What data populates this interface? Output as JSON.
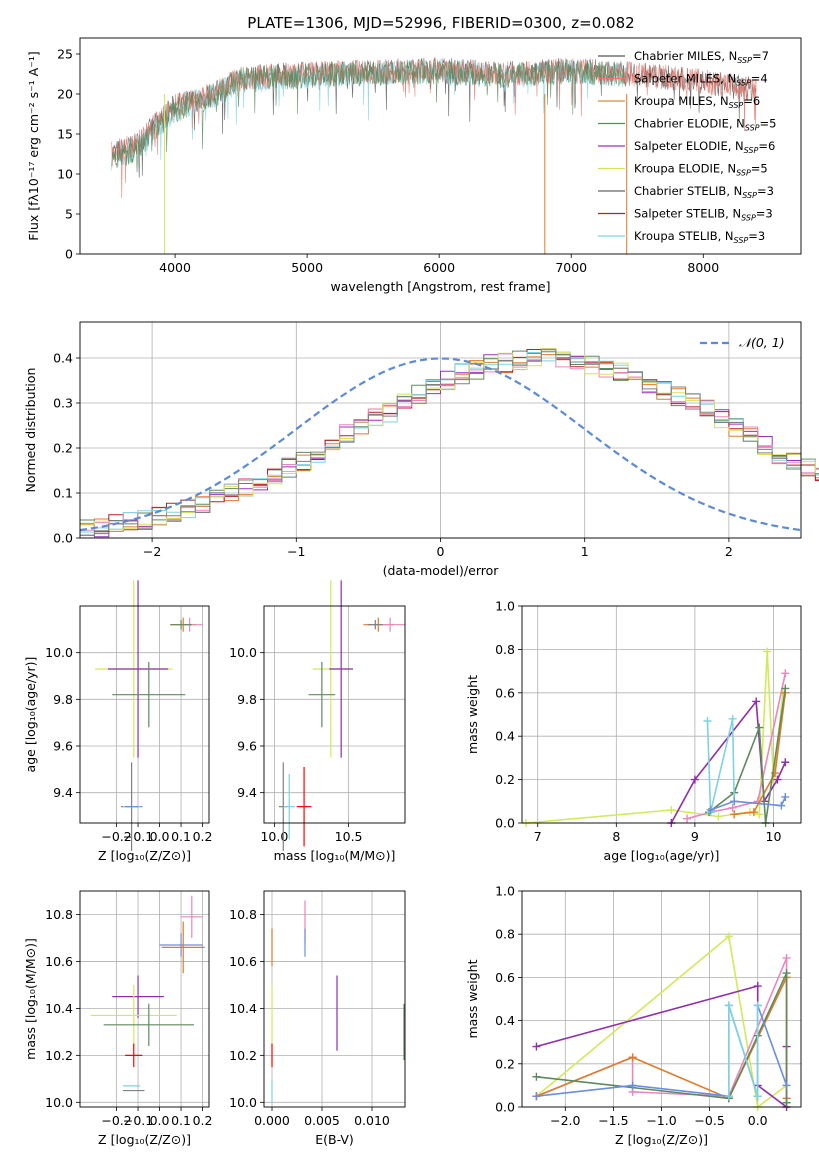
{
  "figure": {
    "title": "PLATE=1306, MJD=52996, FIBERID=0300, z=0.082"
  },
  "legend_models": [
    {
      "label": "Chabrier MILES, N",
      "sub": "SSP",
      "tail": "=7",
      "color": "#555555"
    },
    {
      "label": "Salpeter MILES, N",
      "sub": "SSP",
      "tail": "=4",
      "color": "#e8766a"
    },
    {
      "label": "Kroupa MILES, N",
      "sub": "SSP",
      "tail": "=6",
      "color": "#d9893e"
    },
    {
      "label": "Chabrier ELODIE, N",
      "sub": "SSP",
      "tail": "=5",
      "color": "#5a8a5a"
    },
    {
      "label": "Salpeter ELODIE, N",
      "sub": "SSP",
      "tail": "=6",
      "color": "#9b30c0"
    },
    {
      "label": "Kroupa ELODIE, N",
      "sub": "SSP",
      "tail": "=5",
      "color": "#d6e25a"
    },
    {
      "label": "Chabrier STELIB, N",
      "sub": "SSP",
      "tail": "=3",
      "color": "#666666"
    },
    {
      "label": "Salpeter STELIB, N",
      "sub": "SSP",
      "tail": "=3",
      "color": "#b22222"
    },
    {
      "label": "Kroupa STELIB, N",
      "sub": "SSP",
      "tail": "=3",
      "color": "#7fd3e0"
    }
  ],
  "colors": {
    "grid": "#b0b0b0",
    "normal_curve": "#5b8bd6",
    "orange": "#e07b2a",
    "pink": "#e887bd",
    "blue": "#6a8fe0",
    "purple": "#8e2eaa",
    "green": "#5f8a5f",
    "yellow": "#d2ea5a",
    "cyan": "#7fd3e0",
    "gray": "#808080"
  },
  "chart_data": [
    {
      "id": "spectrum",
      "type": "line",
      "xlabel": "wavelength [Angstrom, rest frame]",
      "ylabel": "Flux [fλ10⁻¹⁷ erg cm⁻² s⁻¹ A⁻¹]",
      "xlim": [
        3280,
        8740
      ],
      "ylim": [
        0,
        27
      ],
      "xticks": [
        4000,
        5000,
        6000,
        7000,
        8000
      ],
      "yticks": [
        0,
        5,
        10,
        15,
        20,
        25
      ],
      "xtick_labels": [
        "4000",
        "5000",
        "6000",
        "7000",
        "8000"
      ],
      "ytick_labels": [
        "0",
        "5",
        "10",
        "15",
        "20",
        "25"
      ],
      "grid": false,
      "legend_position": "upper right",
      "series": [
        {
          "name": "Chabrier MILES",
          "envelope": [
            [
              3520,
              12.5
            ],
            [
              3700,
              13.5
            ],
            [
              3900,
              17.0
            ],
            [
              4000,
              18.5
            ],
            [
              4300,
              20.0
            ],
            [
              4500,
              22.0
            ],
            [
              5000,
              22.5
            ],
            [
              5500,
              22.8
            ],
            [
              6000,
              23.0
            ],
            [
              6500,
              22.5
            ],
            [
              7000,
              23.0
            ],
            [
              7400,
              22.5
            ],
            [
              7450,
              22.6
            ],
            [
              8000,
              21.5
            ],
            [
              8400,
              20.5
            ]
          ]
        },
        {
          "name": "Kroupa STELIB",
          "envelope": [
            [
              3520,
              12.0
            ],
            [
              3700,
              13.0
            ],
            [
              3900,
              16.5
            ],
            [
              4000,
              18.0
            ],
            [
              4300,
              19.8
            ],
            [
              4500,
              21.8
            ],
            [
              5000,
              22.3
            ],
            [
              5500,
              22.6
            ],
            [
              6000,
              22.8
            ],
            [
              6500,
              22.3
            ],
            [
              7000,
              22.8
            ],
            [
              7400,
              22.3
            ]
          ]
        }
      ],
      "cutoffs": [
        {
          "x": 3920,
          "color": "yellow"
        },
        {
          "x": 6800,
          "color": "orange"
        },
        {
          "x": 7420,
          "color": "orange"
        }
      ]
    },
    {
      "id": "residual_hist",
      "type": "line",
      "xlabel": "(data-model)/error",
      "ylabel": "Normed distribution",
      "xlim": [
        -2.5,
        2.5
      ],
      "ylim": [
        0,
        0.48
      ],
      "xticks": [
        -2,
        -1,
        0,
        1,
        2
      ],
      "yticks": [
        0.0,
        0.1,
        0.2,
        0.3,
        0.4
      ],
      "xtick_labels": [
        "−2",
        "−1",
        "0",
        "1",
        "2"
      ],
      "ytick_labels": [
        "0.0",
        "0.1",
        "0.2",
        "0.3",
        "0.4"
      ],
      "grid": true,
      "legend": [
        {
          "name": "𝒩(0, 1)",
          "style": "dashed"
        }
      ],
      "legend_position": "upper right",
      "bin_edges_start": -2.5,
      "bin_width": 0.1,
      "histogram_base": [
        0.02,
        0.025,
        0.03,
        0.035,
        0.04,
        0.05,
        0.055,
        0.065,
        0.075,
        0.09,
        0.1,
        0.11,
        0.125,
        0.14,
        0.155,
        0.17,
        0.19,
        0.21,
        0.23,
        0.25,
        0.265,
        0.28,
        0.3,
        0.32,
        0.335,
        0.35,
        0.365,
        0.375,
        0.385,
        0.39,
        0.395,
        0.4,
        0.405,
        0.398,
        0.39,
        0.385,
        0.38,
        0.37,
        0.36,
        0.345,
        0.33,
        0.315,
        0.3,
        0.285,
        0.265,
        0.245,
        0.225,
        0.205,
        0.185,
        0.17,
        0.155,
        0.14,
        0.125,
        0.11,
        0.1,
        0.085,
        0.075,
        0.065,
        0.055,
        0.05,
        0.045,
        0.04,
        0.035,
        0.03,
        0.025,
        0.025,
        0.025,
        0.02,
        0.02,
        0.02,
        0.02,
        0.025,
        0.03,
        0.035,
        0.04
      ]
    },
    {
      "id": "age_vs_Z",
      "type": "scatter",
      "xlabel": "Z [log₁₀(Z/Z⊙)]",
      "ylabel": "age  [log₁₀(age/yr)]",
      "xlim": [
        -0.37,
        0.23
      ],
      "ylim": [
        9.27,
        10.2
      ],
      "xticks": [
        -0.2,
        -0.1,
        0.0,
        0.1,
        0.2
      ],
      "yticks": [
        9.4,
        9.6,
        9.8,
        10.0
      ],
      "xtick_labels": [
        "−0.2",
        "−0.1",
        "0.0",
        "0.1",
        "0.2"
      ],
      "ytick_labels": [
        "9.4",
        "9.6",
        "9.8",
        "10.0"
      ],
      "grid": true,
      "points": [
        {
          "x": 0.11,
          "y": 10.12,
          "xerr": 0.06,
          "yerr": 0.03,
          "color": "orange"
        },
        {
          "x": 0.14,
          "y": 10.12,
          "xerr": 0.06,
          "yerr": 0.03,
          "color": "pink"
        },
        {
          "x": 0.1,
          "y": 10.12,
          "xerr": 0.05,
          "yerr": 0.02,
          "color": "green"
        },
        {
          "x": -0.12,
          "y": 9.93,
          "xerr": 0.18,
          "yerr": 0.38,
          "color": "yellow"
        },
        {
          "x": -0.1,
          "y": 9.93,
          "xerr": 0.14,
          "yerr": 0.38,
          "color": "purple"
        },
        {
          "x": -0.05,
          "y": 9.82,
          "xerr": 0.17,
          "yerr": 0.14,
          "color": "green"
        },
        {
          "x": -0.13,
          "y": 9.34,
          "xerr": 0.05,
          "yerr": 0.19,
          "color": "gray"
        },
        {
          "x": -0.13,
          "y": 9.34,
          "xerr": 0.04,
          "yerr": 0.0,
          "color": "cyan"
        },
        {
          "x": -0.13,
          "y": 9.34,
          "xerr": 0.03,
          "yerr": 0.0,
          "color": "blue"
        }
      ]
    },
    {
      "id": "age_vs_mass",
      "type": "scatter",
      "xlabel": "mass [log₁₀(M/M⊙)]",
      "ylabel": "",
      "xlim": [
        9.93,
        10.88
      ],
      "ylim": [
        9.27,
        10.2
      ],
      "xticks": [
        10.0,
        10.5
      ],
      "yticks": [
        9.4,
        9.6,
        9.8,
        10.0
      ],
      "xtick_labels": [
        "10.0",
        "10.5"
      ],
      "ytick_labels": [
        "9.4",
        "9.6",
        "9.8",
        "10.0"
      ],
      "grid": true,
      "points": [
        {
          "x": 10.7,
          "y": 10.12,
          "xerr": 0.1,
          "yerr": 0.03,
          "color": "orange"
        },
        {
          "x": 10.78,
          "y": 10.12,
          "xerr": 0.1,
          "yerr": 0.03,
          "color": "pink"
        },
        {
          "x": 10.68,
          "y": 10.12,
          "xerr": 0.05,
          "yerr": 0.02,
          "color": "gray"
        },
        {
          "x": 10.38,
          "y": 9.93,
          "xerr": 0.12,
          "yerr": 0.38,
          "color": "yellow"
        },
        {
          "x": 10.45,
          "y": 9.93,
          "xerr": 0.08,
          "yerr": 0.38,
          "color": "purple"
        },
        {
          "x": 10.32,
          "y": 9.82,
          "xerr": 0.09,
          "yerr": 0.14,
          "color": "green"
        },
        {
          "x": 10.2,
          "y": 9.34,
          "xerr": 0.05,
          "yerr": 0.17,
          "color": "red"
        },
        {
          "x": 10.06,
          "y": 9.34,
          "xerr": 0.03,
          "yerr": 0.19,
          "color": "gray"
        },
        {
          "x": 10.1,
          "y": 9.34,
          "xerr": 0.04,
          "yerr": 0.14,
          "color": "cyan"
        }
      ]
    },
    {
      "id": "massweight_vs_age",
      "type": "line",
      "xlabel": "age  [log₁₀(age/yr)]",
      "ylabel": "mass weight",
      "xlim": [
        6.8,
        10.35
      ],
      "ylim": [
        0,
        1.0
      ],
      "xticks": [
        7,
        8,
        9,
        10
      ],
      "yticks": [
        0.0,
        0.2,
        0.4,
        0.6,
        0.8,
        1.0
      ],
      "xtick_labels": [
        "7",
        "8",
        "9",
        "10"
      ],
      "ytick_labels": [
        "0.0",
        "0.2",
        "0.4",
        "0.6",
        "0.8",
        "1.0"
      ],
      "grid": true,
      "series": [
        {
          "color": "yellow",
          "x": [
            6.85,
            8.7,
            9.3,
            9.7,
            9.82,
            9.92,
            10.0,
            10.12
          ],
          "y": [
            0.0,
            0.06,
            0.03,
            0.05,
            0.04,
            0.79,
            0.2,
            0.6
          ]
        },
        {
          "color": "purple",
          "x": [
            8.7,
            9.0,
            9.78,
            9.88,
            10.05,
            10.15
          ],
          "y": [
            0.0,
            0.2,
            0.56,
            0.1,
            0.2,
            0.28
          ]
        },
        {
          "color": "pink",
          "x": [
            8.9,
            9.2,
            9.48,
            9.8,
            10.15
          ],
          "y": [
            0.02,
            0.05,
            0.07,
            0.1,
            0.69
          ]
        },
        {
          "color": "orange",
          "x": [
            9.5,
            9.75,
            10.02,
            10.15
          ],
          "y": [
            0.04,
            0.05,
            0.23,
            0.6
          ]
        },
        {
          "color": "green",
          "x": [
            9.18,
            9.5,
            9.82,
            9.9,
            10.15
          ],
          "y": [
            0.05,
            0.14,
            0.44,
            0.0,
            0.62
          ]
        },
        {
          "color": "cyan",
          "x": [
            9.16,
            9.2,
            9.48,
            9.5
          ],
          "y": [
            0.47,
            0.05,
            0.48,
            0.1
          ]
        },
        {
          "color": "blue",
          "x": [
            9.2,
            9.5,
            10.1,
            10.15
          ],
          "y": [
            0.06,
            0.1,
            0.08,
            0.12
          ]
        }
      ]
    },
    {
      "id": "mass_vs_Z",
      "type": "scatter",
      "xlabel": "Z [log₁₀(Z/Z⊙)]",
      "ylabel": "mass [log₁₀(M/M⊙)]",
      "xlim": [
        -0.37,
        0.23
      ],
      "ylim": [
        9.98,
        10.9
      ],
      "xticks": [
        -0.2,
        -0.1,
        0.0,
        0.1,
        0.2
      ],
      "yticks": [
        10.0,
        10.2,
        10.4,
        10.6,
        10.8
      ],
      "xtick_labels": [
        "−0.2",
        "−0.1",
        "0.0",
        "0.1",
        "0.2"
      ],
      "ytick_labels": [
        "10.0",
        "10.2",
        "10.4",
        "10.6",
        "10.8"
      ],
      "grid": true,
      "points": [
        {
          "x": 0.15,
          "y": 10.79,
          "xerr": 0.05,
          "yerr": 0.09,
          "color": "pink"
        },
        {
          "x": 0.1,
          "y": 10.67,
          "xerr": 0.1,
          "yerr": 0.05,
          "color": "blue"
        },
        {
          "x": 0.11,
          "y": 10.66,
          "xerr": 0.1,
          "yerr": 0.11,
          "color": "orange"
        },
        {
          "x": -0.1,
          "y": 10.45,
          "xerr": 0.12,
          "yerr": 0.09,
          "color": "purple"
        },
        {
          "x": -0.12,
          "y": 10.37,
          "xerr": 0.2,
          "yerr": 0.13,
          "color": "yellow"
        },
        {
          "x": -0.05,
          "y": 10.33,
          "xerr": 0.21,
          "yerr": 0.09,
          "color": "green"
        },
        {
          "x": -0.12,
          "y": 10.2,
          "xerr": 0.04,
          "yerr": 0.05,
          "color": "red"
        },
        {
          "x": -0.13,
          "y": 10.07,
          "xerr": 0.04,
          "yerr": 0.0,
          "color": "cyan"
        },
        {
          "x": -0.12,
          "y": 10.05,
          "xerr": 0.05,
          "yerr": 0.0,
          "color": "gray"
        }
      ]
    },
    {
      "id": "mass_vs_ebv",
      "type": "scatter",
      "xlabel": "E(B-V)",
      "ylabel": "",
      "xlim": [
        -0.0008,
        0.0133
      ],
      "ylim": [
        9.98,
        10.9
      ],
      "xticks": [
        0.0,
        0.005,
        0.01
      ],
      "yticks": [
        10.0,
        10.2,
        10.4,
        10.6,
        10.8
      ],
      "xtick_labels": [
        "0.000",
        "0.005",
        "0.010"
      ],
      "ytick_labels": [
        "10.0",
        "10.2",
        "10.4",
        "10.6",
        "10.8"
      ],
      "grid": true,
      "points": [
        {
          "x": 0.0,
          "y": 10.66,
          "xerr": 0.0,
          "yerr": 0.08,
          "color": "orange"
        },
        {
          "x": 0.0,
          "y": 10.37,
          "xerr": 0.0,
          "yerr": 0.13,
          "color": "yellow"
        },
        {
          "x": 0.0,
          "y": 10.2,
          "xerr": 0.0,
          "yerr": 0.05,
          "color": "red"
        },
        {
          "x": 0.0,
          "y": 10.05,
          "xerr": 0.0,
          "yerr": 0.05,
          "color": "cyan"
        },
        {
          "x": 0.0033,
          "y": 10.77,
          "xerr": 0.0,
          "yerr": 0.09,
          "color": "pink"
        },
        {
          "x": 0.0033,
          "y": 10.68,
          "xerr": 0.0,
          "yerr": 0.06,
          "color": "blue"
        },
        {
          "x": 0.0065,
          "y": 10.38,
          "xerr": 0.0,
          "yerr": 0.16,
          "color": "purple"
        },
        {
          "x": 0.0132,
          "y": 10.3,
          "xerr": 0.0,
          "yerr": 0.12,
          "color": "green"
        }
      ]
    },
    {
      "id": "massweight_vs_Z",
      "type": "line",
      "xlabel": "Z [log₁₀(Z/Z⊙)]",
      "ylabel": "mass weight",
      "xlim": [
        -2.45,
        0.45
      ],
      "ylim": [
        0,
        1.0
      ],
      "xticks": [
        -2.0,
        -1.5,
        -1.0,
        -0.5,
        0.0
      ],
      "yticks": [
        0.0,
        0.2,
        0.4,
        0.6,
        0.8,
        1.0
      ],
      "xtick_labels": [
        "−2.0",
        "−1.5",
        "−1.0",
        "−0.5",
        "0.0"
      ],
      "ytick_labels": [
        "0.0",
        "0.2",
        "0.4",
        "0.6",
        "0.8",
        "1.0"
      ],
      "grid": true,
      "series": [
        {
          "color": "yellow",
          "x": [
            -2.3,
            -0.3,
            0.0,
            0.3,
            0.3
          ],
          "y": [
            0.05,
            0.79,
            0.0,
            0.1,
            0.6
          ]
        },
        {
          "color": "purple",
          "x": [
            -2.3,
            0.0,
            0.0,
            0.3,
            0.3
          ],
          "y": [
            0.28,
            0.56,
            0.1,
            0.0,
            0.28
          ]
        },
        {
          "color": "pink",
          "x": [
            -2.3,
            -1.3,
            -1.3,
            -0.3,
            0.3,
            0.3
          ],
          "y": [
            0.05,
            0.23,
            0.07,
            0.05,
            0.69,
            0.02
          ]
        },
        {
          "color": "orange",
          "x": [
            -2.3,
            -1.3,
            -0.3,
            0.3,
            0.3
          ],
          "y": [
            0.05,
            0.23,
            0.04,
            0.6,
            0.04
          ]
        },
        {
          "color": "green",
          "x": [
            -2.3,
            -0.3,
            0.0,
            0.3,
            0.3
          ],
          "y": [
            0.14,
            0.04,
            0.33,
            0.62,
            0.02
          ]
        },
        {
          "color": "blue",
          "x": [
            -2.3,
            -1.3,
            -0.3,
            -0.3,
            0.0,
            0.0,
            0.3
          ],
          "y": [
            0.05,
            0.1,
            0.05,
            0.47,
            0.05,
            0.47,
            0.1
          ]
        },
        {
          "color": "cyan",
          "x": [
            -0.3,
            -0.3,
            0.0,
            0.0
          ],
          "y": [
            0.05,
            0.47,
            0.05,
            0.47
          ]
        }
      ]
    }
  ]
}
